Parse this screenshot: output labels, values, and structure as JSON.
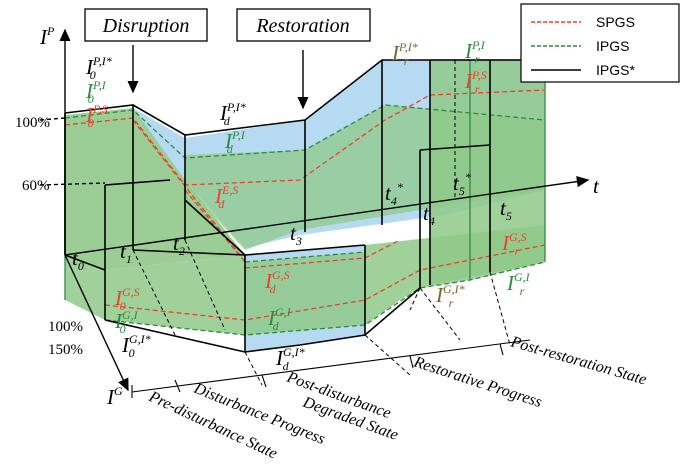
{
  "titles": {
    "disruption": "Disruption",
    "restoration": "Restoration"
  },
  "axes": {
    "power": "I",
    "power_sup": "P",
    "gas": "I",
    "gas_sup": "G",
    "time": "t"
  },
  "percent_labels": {
    "p100": "100%",
    "p60": "60%",
    "g100": "100%",
    "g150": "150%"
  },
  "legend": [
    {
      "name": "SPGS",
      "color": "#e8432b",
      "style": "dashed"
    },
    {
      "name": "IPGS",
      "color": "#2f8a3e",
      "style": "dashed"
    },
    {
      "name": "IPGS*",
      "color": "#000000",
      "style": "solid"
    }
  ],
  "time_labels": {
    "t0": "t",
    "t0s": "0",
    "t1": "t",
    "t1s": "1",
    "t2": "t",
    "t2s": "2",
    "t3": "t",
    "t3s": "3",
    "t4": "t",
    "t4s": "4",
    "t4star": "t",
    "t4stars": "4",
    "t4sup": "*",
    "t5": "t",
    "t5s": "5",
    "t5star": "t",
    "t5stars": "5",
    "t5sup": "*"
  },
  "power_labels": {
    "pi0star": {
      "base": "I",
      "sup": "P,I*",
      "sub": "0"
    },
    "pi0": {
      "base": "I",
      "sup": "P,I",
      "sub": "0"
    },
    "ps0": {
      "base": "I",
      "sup": "P,S",
      "sub": "0"
    },
    "pidstar": {
      "base": "I",
      "sup": "P,I*",
      "sub": "d"
    },
    "pid": {
      "base": "I",
      "sup": "P,I",
      "sub": "d"
    },
    "esd": {
      "base": "I",
      "sup": "E,S",
      "sub": "d"
    },
    "pirstar": {
      "base": "I",
      "sup": "P,I*",
      "sub": "r"
    },
    "pir": {
      "base": "I",
      "sup": "P,I",
      "sub": "r"
    },
    "psr": {
      "base": "I",
      "sup": "P,S",
      "sub": "r"
    }
  },
  "gas_labels": {
    "gs0": {
      "base": "I",
      "sup": "G,S",
      "sub": "0"
    },
    "gi0": {
      "base": "I",
      "sup": "G,I",
      "sub": "0"
    },
    "gi0star": {
      "base": "I",
      "sup": "G,I*",
      "sub": "0"
    },
    "gsd": {
      "base": "I",
      "sup": "G,S",
      "sub": "d"
    },
    "gid": {
      "base": "I",
      "sup": "G,I",
      "sub": "d"
    },
    "gidstar": {
      "base": "I",
      "sup": "G,I*",
      "sub": "d"
    },
    "girstar": {
      "base": "I",
      "sup": "G,I*",
      "sub": "r"
    },
    "gsr": {
      "base": "I",
      "sup": "G,S",
      "sub": "r"
    },
    "gir": {
      "base": "I",
      "sup": "G,I",
      "sub": "r"
    }
  },
  "phases": {
    "pre": "Pre-disturbance State",
    "dist": "Disturbance Progress",
    "post1": "Post-disturbance",
    "post2": "Degraded State",
    "rest": "Restorative Progress",
    "postrest": "Post-restoration State"
  },
  "colors": {
    "green_fill": "#8fc98a",
    "blue_fill": "#a9d3ef",
    "green_line": "#2f8a3e",
    "red_line": "#e8432b",
    "dark_green_text": "#6b6b2a"
  }
}
